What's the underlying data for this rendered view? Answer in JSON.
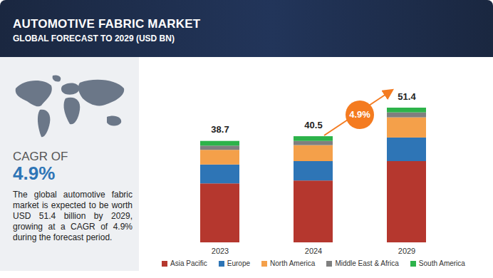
{
  "chart_data": {
    "type": "bar",
    "stacked": true,
    "title": "AUTOMOTIVE FABRIC MARKET",
    "subtitle": "GLOBAL FORECAST TO 2029 (USD BN)",
    "categories": [
      "2023",
      "2024",
      "2029"
    ],
    "series": [
      {
        "name": "Asia Pacific",
        "color": "#b5372e",
        "values": [
          22.5,
          23.6,
          31.0
        ]
      },
      {
        "name": "Europe",
        "color": "#2e75b6",
        "values": [
          7.2,
          7.4,
          9.0
        ]
      },
      {
        "name": "North America",
        "color": "#f4a04a",
        "values": [
          5.6,
          6.1,
          7.7
        ]
      },
      {
        "name": "Middle East & Africa",
        "color": "#7f7f7f",
        "values": [
          1.6,
          1.6,
          1.9
        ]
      },
      {
        "name": "South America",
        "color": "#2db34a",
        "values": [
          1.8,
          1.8,
          1.8
        ]
      }
    ],
    "totals": [
      38.7,
      40.5,
      51.4
    ],
    "annotation": "4.9%",
    "cagr_label": "CAGR OF",
    "cagr_value": "4.9%",
    "description": "The global automotive fabric market is expected to be worth USD 51.4 billion by 2029, growing at a CAGR of 4.9% during the forecast period.",
    "tick_labels": "x",
    "legend": "bottom"
  }
}
